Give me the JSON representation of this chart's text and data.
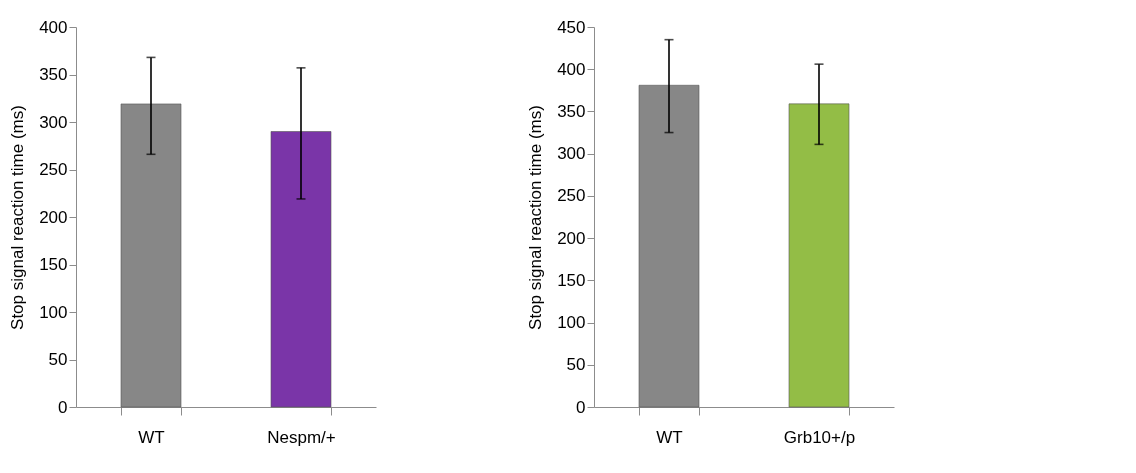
{
  "chart_data": [
    {
      "type": "bar",
      "categories": [
        "WT",
        "Nespm/+"
      ],
      "values": [
        319,
        290
      ],
      "colors": [
        "#878787",
        "#7a35a8"
      ],
      "errors": [
        [
          266,
          368
        ],
        [
          219,
          357
        ]
      ],
      "ylabel": "Stop signal reaction time (ms)",
      "ylim": [
        0,
        400
      ],
      "yticks": [
        0,
        50,
        100,
        150,
        200,
        250,
        300,
        350,
        400
      ],
      "grid": false,
      "legend": false
    },
    {
      "type": "bar",
      "categories": [
        "WT",
        "Grb10+/p"
      ],
      "values": [
        381,
        359
      ],
      "colors": [
        "#878787",
        "#93bd46"
      ],
      "errors": [
        [
          325,
          435
        ],
        [
          311,
          406
        ]
      ],
      "ylabel": "Stop signal reaction time (ms)",
      "ylim": [
        0,
        450
      ],
      "yticks": [
        0,
        50,
        100,
        150,
        200,
        250,
        300,
        350,
        400,
        450
      ],
      "grid": false,
      "legend": false
    }
  ]
}
